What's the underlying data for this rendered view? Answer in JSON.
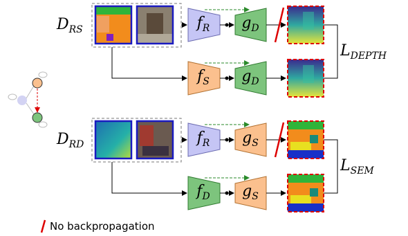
{
  "rows": [
    {
      "dataset": {
        "main": "D",
        "sub": "RS"
      },
      "top": {
        "encoder": {
          "main": "f",
          "sub": "R"
        },
        "decoder": {
          "main": "g",
          "sub": "D"
        }
      },
      "bottom": {
        "encoder": {
          "main": "f",
          "sub": "S"
        },
        "decoder": {
          "main": "g",
          "sub": "D"
        }
      },
      "loss": {
        "main": "L",
        "sub": "DEPTH"
      }
    },
    {
      "dataset": {
        "main": "D",
        "sub": "RD"
      },
      "top": {
        "encoder": {
          "main": "f",
          "sub": "R"
        },
        "decoder": {
          "main": "g",
          "sub": "S"
        }
      },
      "bottom": {
        "encoder": {
          "main": "f",
          "sub": "D"
        },
        "decoder": {
          "main": "g",
          "sub": "S"
        }
      },
      "loss": {
        "main": "L",
        "sub": "SEM"
      }
    }
  ],
  "legend": "No backpropagation"
}
